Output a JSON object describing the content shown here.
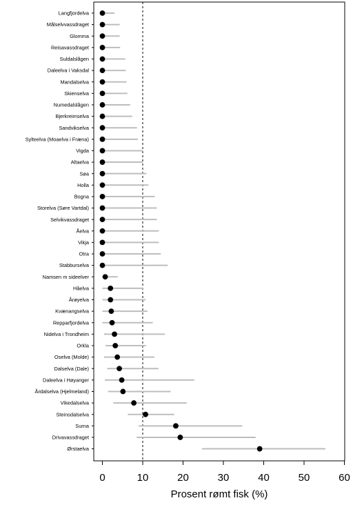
{
  "chart_data": {
    "type": "scatter",
    "xlabel": "Prosent rømt fisk (%)",
    "ylabel": "",
    "xlim": [
      0,
      60
    ],
    "xticks": [
      0,
      10,
      20,
      30,
      40,
      50,
      60
    ],
    "reference_line": 10,
    "grid": false,
    "series": [
      {
        "points": [
          {
            "river": "Langfjordelva",
            "value": 0,
            "ci": [
              0,
              3.0
            ]
          },
          {
            "river": "Målselvvassdraget",
            "value": 0,
            "ci": [
              0,
              4.3
            ]
          },
          {
            "river": "Glomma",
            "value": 0,
            "ci": [
              0,
              4.3
            ]
          },
          {
            "river": "Reisavassdraget",
            "value": 0,
            "ci": [
              0,
              4.4
            ]
          },
          {
            "river": "Suldalslågen",
            "value": 0,
            "ci": [
              0,
              5.7
            ]
          },
          {
            "river": "Daleelva i Vaksdal",
            "value": 0,
            "ci": [
              0,
              5.8
            ]
          },
          {
            "river": "Mandalselva",
            "value": 0,
            "ci": [
              0,
              6.0
            ]
          },
          {
            "river": "Skienselva",
            "value": 0,
            "ci": [
              0,
              6.2
            ]
          },
          {
            "river": "Numedalslågen",
            "value": 0,
            "ci": [
              0,
              6.9
            ]
          },
          {
            "river": "Bjerkreimselva",
            "value": 0,
            "ci": [
              0,
              7.4
            ]
          },
          {
            "river": "Sandvikselva",
            "value": 0,
            "ci": [
              0,
              8.6
            ]
          },
          {
            "river": "Sylteelva (Moaelva i Fræna)",
            "value": 0,
            "ci": [
              0,
              8.8
            ]
          },
          {
            "river": "Vigda",
            "value": 0,
            "ci": [
              0,
              10.0
            ]
          },
          {
            "river": "Altaelva",
            "value": 0,
            "ci": [
              0,
              10.0
            ]
          },
          {
            "river": "Søa",
            "value": 0,
            "ci": [
              0,
              10.9
            ]
          },
          {
            "river": "Holla",
            "value": 0,
            "ci": [
              0,
              11.4
            ]
          },
          {
            "river": "Bogna",
            "value": 0,
            "ci": [
              0,
              13.0
            ]
          },
          {
            "river": "Storelva (Søre Vartdal)",
            "value": 0,
            "ci": [
              0,
              13.5
            ]
          },
          {
            "river": "Selvikvassdraget",
            "value": 0,
            "ci": [
              0,
              13.5
            ]
          },
          {
            "river": "Åelva",
            "value": 0,
            "ci": [
              0,
              14.0
            ]
          },
          {
            "river": "Vikja",
            "value": 0,
            "ci": [
              0,
              14.0
            ]
          },
          {
            "river": "Otra",
            "value": 0,
            "ci": [
              0,
              14.5
            ]
          },
          {
            "river": "Stabburselva",
            "value": 0,
            "ci": [
              0,
              16.2
            ]
          },
          {
            "river": "Namsen m sideelver",
            "value": 0.7,
            "ci": [
              0,
              3.8
            ]
          },
          {
            "river": "Håelva",
            "value": 2.0,
            "ci": [
              0,
              10.2
            ]
          },
          {
            "river": "Årøyelva",
            "value": 2.0,
            "ci": [
              0,
              10.7
            ]
          },
          {
            "river": "Kvænangselva",
            "value": 2.2,
            "ci": [
              0,
              11.2
            ]
          },
          {
            "river": "Repparfjordelva",
            "value": 2.4,
            "ci": [
              0,
              12.5
            ]
          },
          {
            "river": "Nidelva i Trondheim",
            "value": 3.0,
            "ci": [
              0.4,
              15.5
            ]
          },
          {
            "river": "Orkla",
            "value": 3.2,
            "ci": [
              0.8,
              10.8
            ]
          },
          {
            "river": "Oselva (Molde)",
            "value": 3.7,
            "ci": [
              0.4,
              12.9
            ]
          },
          {
            "river": "Dalselva (Dale)",
            "value": 4.2,
            "ci": [
              1.2,
              13.9
            ]
          },
          {
            "river": "Daleelva i Høyanger",
            "value": 4.8,
            "ci": [
              0.6,
              22.8
            ]
          },
          {
            "river": "Årdalselva (Hjelmeland)",
            "value": 5.1,
            "ci": [
              1.4,
              16.9
            ]
          },
          {
            "river": "Vikedalselva",
            "value": 7.8,
            "ci": [
              2.7,
              20.9
            ]
          },
          {
            "river": "Steinsdalselva",
            "value": 10.7,
            "ci": [
              6.3,
              17.8
            ]
          },
          {
            "river": "Surna",
            "value": 18.2,
            "ci": [
              9.0,
              34.7
            ]
          },
          {
            "river": "Drivavassdraget",
            "value": 19.3,
            "ci": [
              8.5,
              38.0
            ]
          },
          {
            "river": "Ørstaelva",
            "value": 39.0,
            "ci": [
              24.7,
              55.3
            ]
          }
        ]
      }
    ]
  }
}
